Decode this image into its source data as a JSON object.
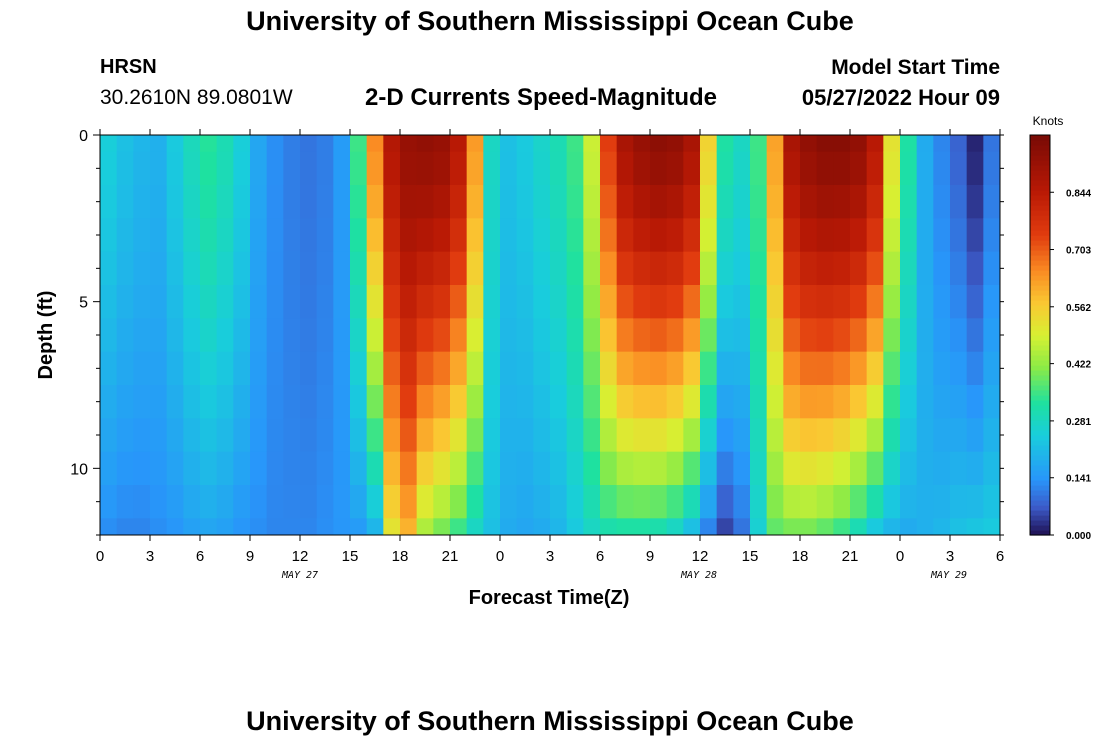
{
  "header": {
    "title": "University of Southern Mississippi Ocean Cube",
    "station": "HRSN",
    "coords": "30.2610N  89.0801W",
    "subtitle": "2-D Currents Speed-Magnitude",
    "model_start_label": "Model Start Time",
    "model_start_value": "05/27/2022 Hour 09"
  },
  "footer": {
    "title": "University of Southern Mississippi Ocean Cube"
  },
  "chart_data": {
    "type": "heatmap",
    "title": "2-D Currents Speed-Magnitude",
    "xlabel": "Forecast Time(Z)",
    "ylabel": "Depth (ft)",
    "colorbar_label": "Knots",
    "colorbar_ticks": [
      "0.000",
      "0.141",
      "0.281",
      "0.422",
      "0.562",
      "0.703",
      "0.844"
    ],
    "color_range": [
      0,
      0.985
    ],
    "x_range_hours": [
      0,
      54
    ],
    "x_tick_labels": [
      "0",
      "3",
      "6",
      "9",
      "12",
      "15",
      "18",
      "21",
      "0",
      "3",
      "6",
      "9",
      "12",
      "15",
      "18",
      "21",
      "0",
      "3",
      "6"
    ],
    "date_labels": [
      "MAY 27",
      "MAY 28",
      "MAY 29"
    ],
    "y_range": [
      0,
      12
    ],
    "y_tick_labels": [
      "0",
      "5",
      "10"
    ],
    "depths_ft": [
      0,
      1,
      2,
      3,
      4,
      5,
      6,
      7,
      8,
      9,
      10,
      11,
      12
    ],
    "time_hours": [
      0,
      1,
      2,
      3,
      4,
      5,
      6,
      7,
      8,
      9,
      10,
      11,
      12,
      13,
      14,
      15,
      16,
      17,
      18,
      19,
      20,
      21,
      22,
      23,
      24,
      25,
      26,
      27,
      28,
      29,
      30,
      31,
      32,
      33,
      34,
      35,
      36,
      37,
      38,
      39,
      40,
      41,
      42,
      43,
      44,
      45,
      46,
      47,
      48,
      49,
      50,
      51,
      52,
      53
    ],
    "profile_by_time_surface_knots": [
      0.25,
      0.22,
      0.2,
      0.19,
      0.24,
      0.29,
      0.33,
      0.3,
      0.25,
      0.17,
      0.13,
      0.11,
      0.1,
      0.11,
      0.15,
      0.35,
      0.65,
      0.86,
      0.92,
      0.93,
      0.92,
      0.85,
      0.63,
      0.28,
      0.22,
      0.24,
      0.27,
      0.3,
      0.35,
      0.48,
      0.74,
      0.88,
      0.92,
      0.94,
      0.93,
      0.88,
      0.55,
      0.32,
      0.28,
      0.35,
      0.62,
      0.88,
      0.93,
      0.95,
      0.95,
      0.93,
      0.85,
      0.52,
      0.32,
      0.18,
      0.12,
      0.08,
      0.02,
      0.1
    ],
    "profile_by_time_bottom_knots": [
      0.13,
      0.12,
      0.12,
      0.13,
      0.14,
      0.16,
      0.17,
      0.16,
      0.14,
      0.13,
      0.12,
      0.12,
      0.12,
      0.13,
      0.14,
      0.15,
      0.2,
      0.52,
      0.6,
      0.45,
      0.4,
      0.35,
      0.28,
      0.22,
      0.18,
      0.17,
      0.18,
      0.2,
      0.24,
      0.28,
      0.31,
      0.32,
      0.32,
      0.31,
      0.28,
      0.22,
      0.12,
      0.05,
      0.1,
      0.26,
      0.38,
      0.4,
      0.4,
      0.38,
      0.35,
      0.3,
      0.24,
      0.2,
      0.18,
      0.19,
      0.2,
      0.22,
      0.23,
      0.24
    ]
  }
}
